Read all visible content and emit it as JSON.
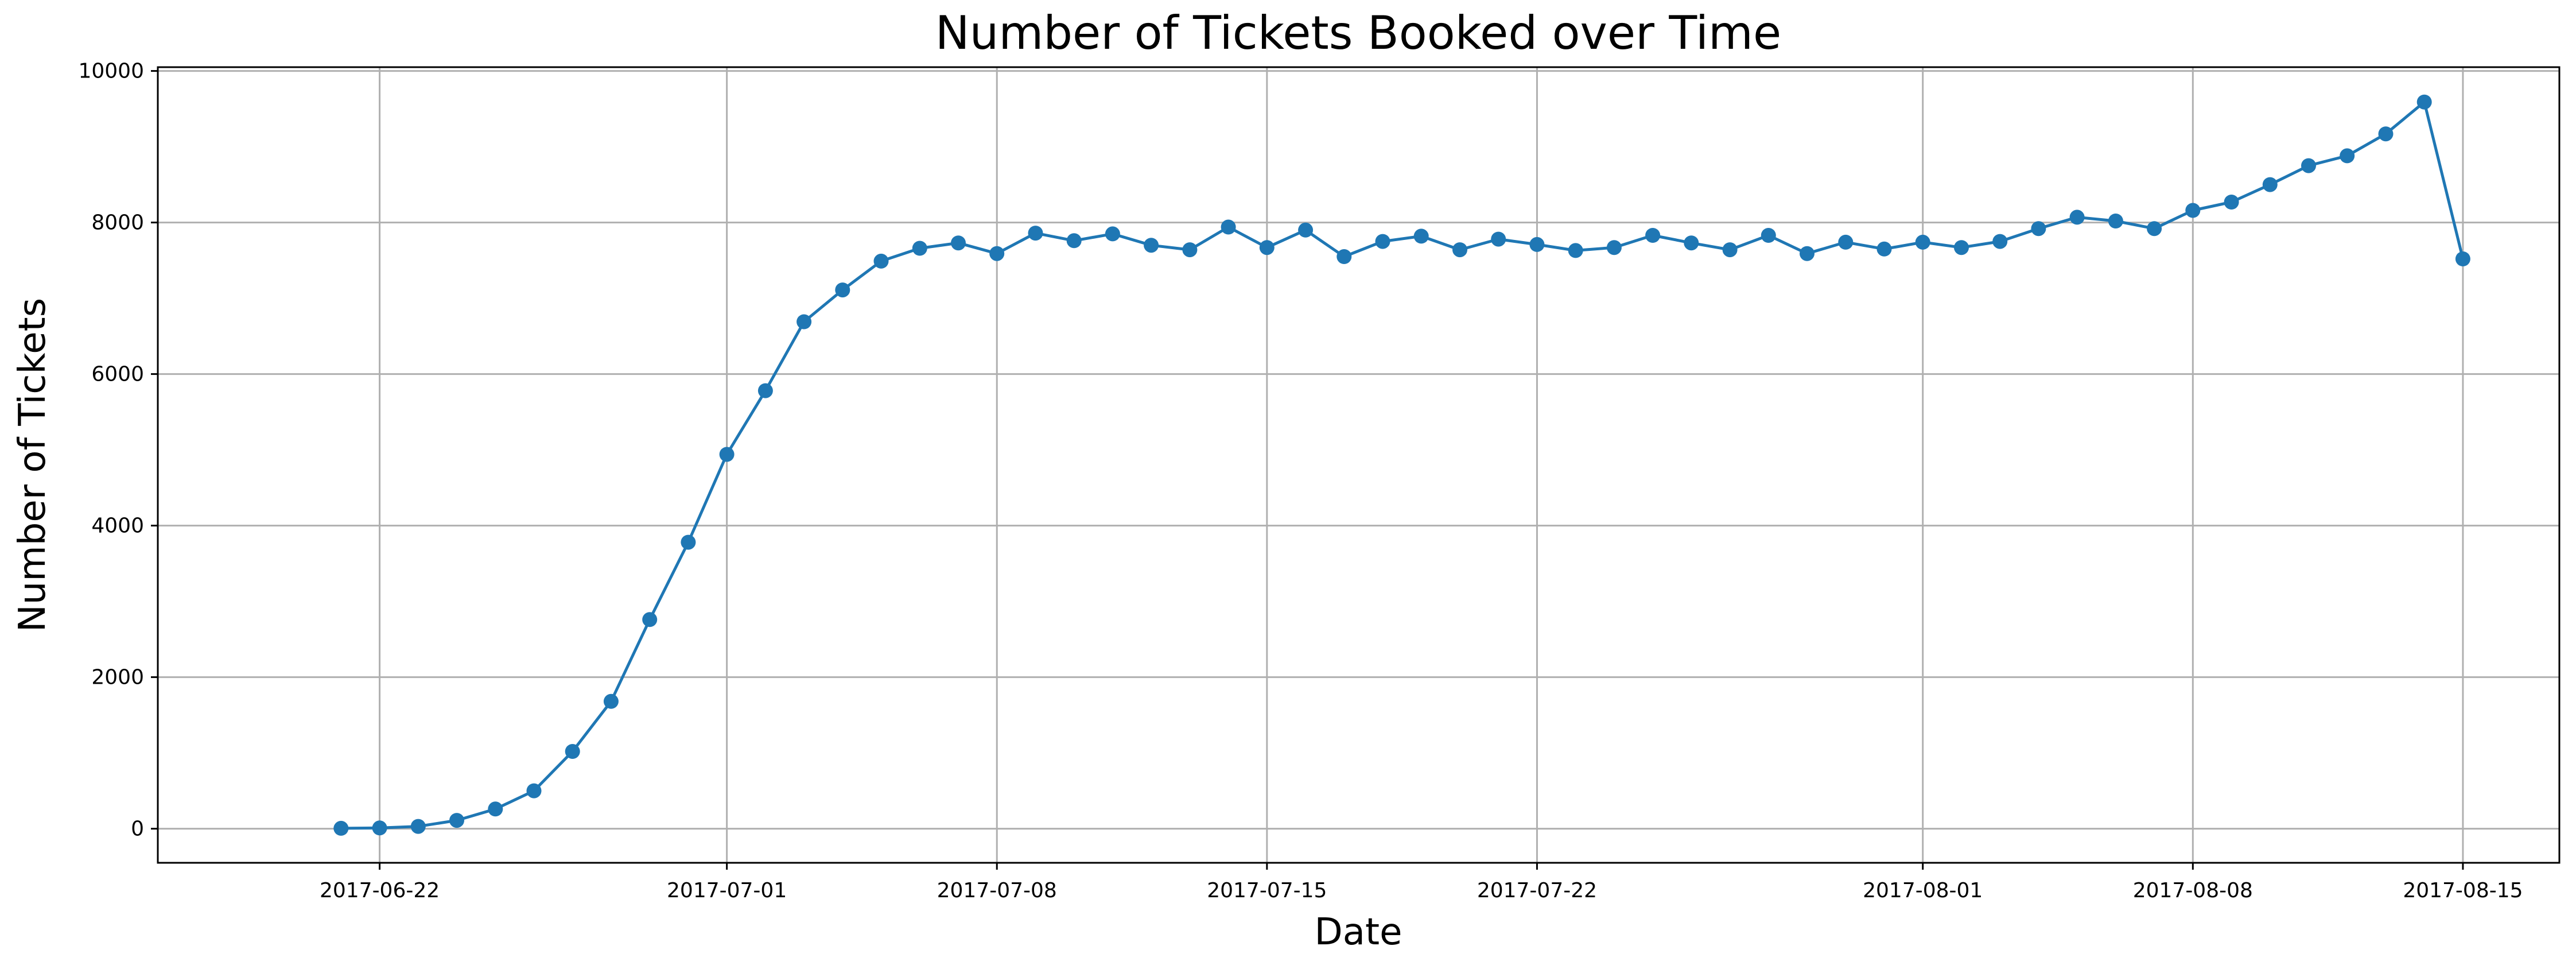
{
  "chart_data": {
    "type": "line",
    "title": "Number of Tickets Booked over Time",
    "xlabel": "Date",
    "ylabel": "Number of Tickets",
    "x_ticks": [
      "2017-06-22",
      "2017-07-01",
      "2017-07-08",
      "2017-07-15",
      "2017-07-22",
      "2017-08-01",
      "2017-08-08",
      "2017-08-15"
    ],
    "y_ticks": [
      0,
      2000,
      4000,
      6000,
      8000,
      10000
    ],
    "xlim": [
      "2017-06-17",
      "2017-08-18"
    ],
    "ylim": [
      -450,
      10050
    ],
    "grid": true,
    "marker": "circle",
    "series_color": "#1f77b4",
    "grid_color": "#b0b0b0",
    "series": [
      {
        "x": [
          "2017-06-21",
          "2017-06-22",
          "2017-06-23",
          "2017-06-24",
          "2017-06-25",
          "2017-06-26",
          "2017-06-27",
          "2017-06-28",
          "2017-06-29",
          "2017-06-30",
          "2017-07-01",
          "2017-07-02",
          "2017-07-03",
          "2017-07-04",
          "2017-07-05",
          "2017-07-06",
          "2017-07-07",
          "2017-07-08",
          "2017-07-09",
          "2017-07-10",
          "2017-07-11",
          "2017-07-12",
          "2017-07-13",
          "2017-07-14",
          "2017-07-15",
          "2017-07-16",
          "2017-07-17",
          "2017-07-18",
          "2017-07-19",
          "2017-07-20",
          "2017-07-21",
          "2017-07-22",
          "2017-07-23",
          "2017-07-24",
          "2017-07-25",
          "2017-07-26",
          "2017-07-27",
          "2017-07-28",
          "2017-07-29",
          "2017-07-30",
          "2017-07-31",
          "2017-08-01",
          "2017-08-02",
          "2017-08-03",
          "2017-08-04",
          "2017-08-05",
          "2017-08-06",
          "2017-08-07",
          "2017-08-08",
          "2017-08-09",
          "2017-08-10",
          "2017-08-11",
          "2017-08-12",
          "2017-08-13",
          "2017-08-14",
          "2017-08-15"
        ],
        "y": [
          5,
          10,
          30,
          110,
          260,
          500,
          1020,
          1680,
          2760,
          3780,
          4940,
          5780,
          6690,
          7110,
          7490,
          7660,
          7730,
          7590,
          7860,
          7760,
          7850,
          7700,
          7640,
          7940,
          7670,
          7900,
          7550,
          7750,
          7820,
          7640,
          7780,
          7710,
          7630,
          7670,
          7830,
          7730,
          7640,
          7830,
          7590,
          7740,
          7650,
          7740,
          7670,
          7750,
          7920,
          8070,
          8020,
          7920,
          8160,
          8270,
          8500,
          8750,
          8880,
          9170,
          9590,
          7520
        ]
      }
    ]
  }
}
